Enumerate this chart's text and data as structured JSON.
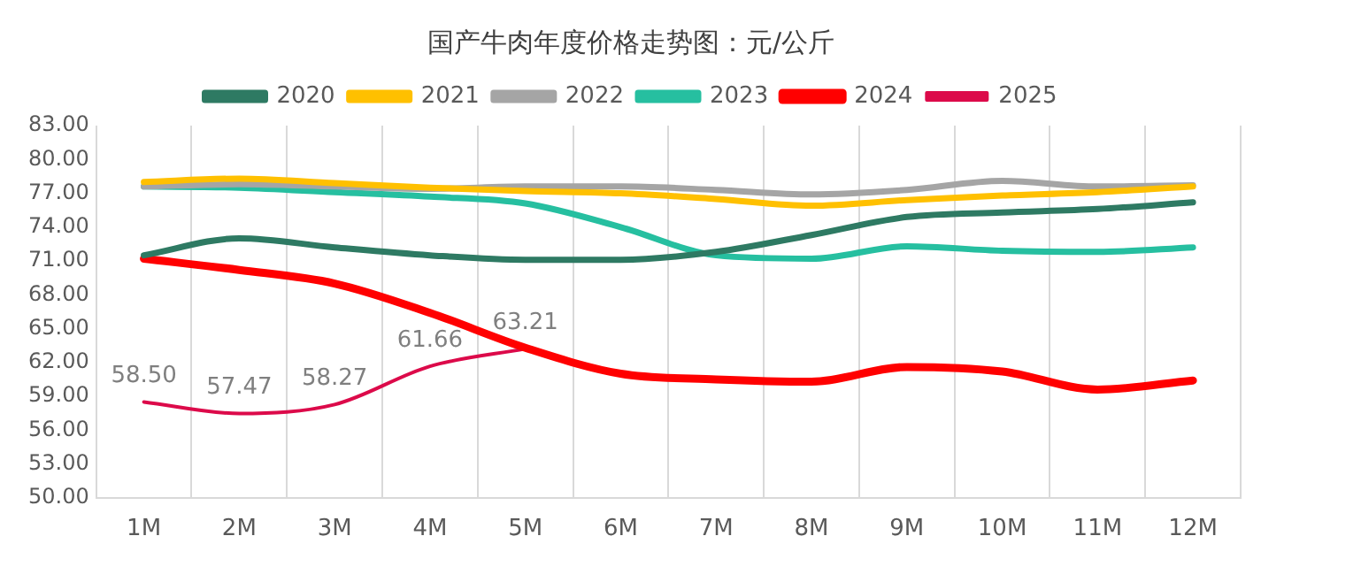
{
  "chart_data": {
    "type": "line",
    "title": "国产牛肉年度价格走势图：元/公斤",
    "categories": [
      "1M",
      "2M",
      "3M",
      "4M",
      "5M",
      "6M",
      "7M",
      "8M",
      "9M",
      "10M",
      "11M",
      "12M"
    ],
    "series": [
      {
        "name": "2020",
        "color": "#2e7a63",
        "values": [
          71.5,
          73.0,
          72.2,
          71.5,
          71.1,
          71.1,
          71.8,
          73.3,
          74.9,
          75.3,
          75.6,
          76.2
        ]
      },
      {
        "name": "2021",
        "color": "#ffc000",
        "values": [
          78.0,
          78.3,
          77.9,
          77.5,
          77.2,
          77.0,
          76.5,
          75.9,
          76.4,
          76.8,
          77.1,
          77.6
        ]
      },
      {
        "name": "2022",
        "color": "#a5a5a5",
        "values": [
          77.6,
          77.8,
          77.6,
          77.4,
          77.6,
          77.6,
          77.3,
          76.9,
          77.3,
          78.1,
          77.6,
          77.7
        ]
      },
      {
        "name": "2023",
        "color": "#26bfa0",
        "values": [
          77.6,
          77.5,
          77.1,
          76.7,
          76.1,
          74.0,
          71.5,
          71.2,
          72.3,
          71.9,
          71.8,
          72.2
        ]
      },
      {
        "name": "2024",
        "color": "#ff0000",
        "values": [
          71.2,
          70.2,
          69.0,
          66.4,
          63.3,
          61.0,
          60.5,
          60.3,
          61.6,
          61.2,
          59.6,
          60.4
        ]
      },
      {
        "name": "2025",
        "color": "#dc0a4a",
        "values": [
          58.5,
          57.47,
          58.27,
          61.66,
          63.21,
          null,
          null,
          null,
          null,
          null,
          null,
          null
        ],
        "value_labels": [
          "58.50",
          "57.47",
          "58.27",
          "61.66",
          "63.21",
          null,
          null,
          null,
          null,
          null,
          null,
          null
        ]
      }
    ],
    "ylim": [
      50,
      83
    ],
    "yticks": [
      {
        "value": 50,
        "label": "50.00"
      },
      {
        "value": 53,
        "label": "53.00"
      },
      {
        "value": 56,
        "label": "56.00"
      },
      {
        "value": 59,
        "label": "59.00"
      },
      {
        "value": 62,
        "label": "62.00"
      },
      {
        "value": 65,
        "label": "65.00"
      },
      {
        "value": 68,
        "label": "68.00"
      },
      {
        "value": 71,
        "label": "71.00"
      },
      {
        "value": 74,
        "label": "74.00"
      },
      {
        "value": 77,
        "label": "77.00"
      },
      {
        "value": 80,
        "label": "80.00"
      },
      {
        "value": 83,
        "label": "83.00"
      }
    ],
    "grid": "x",
    "legend": "top",
    "marker": "none",
    "line_style": "solid"
  }
}
